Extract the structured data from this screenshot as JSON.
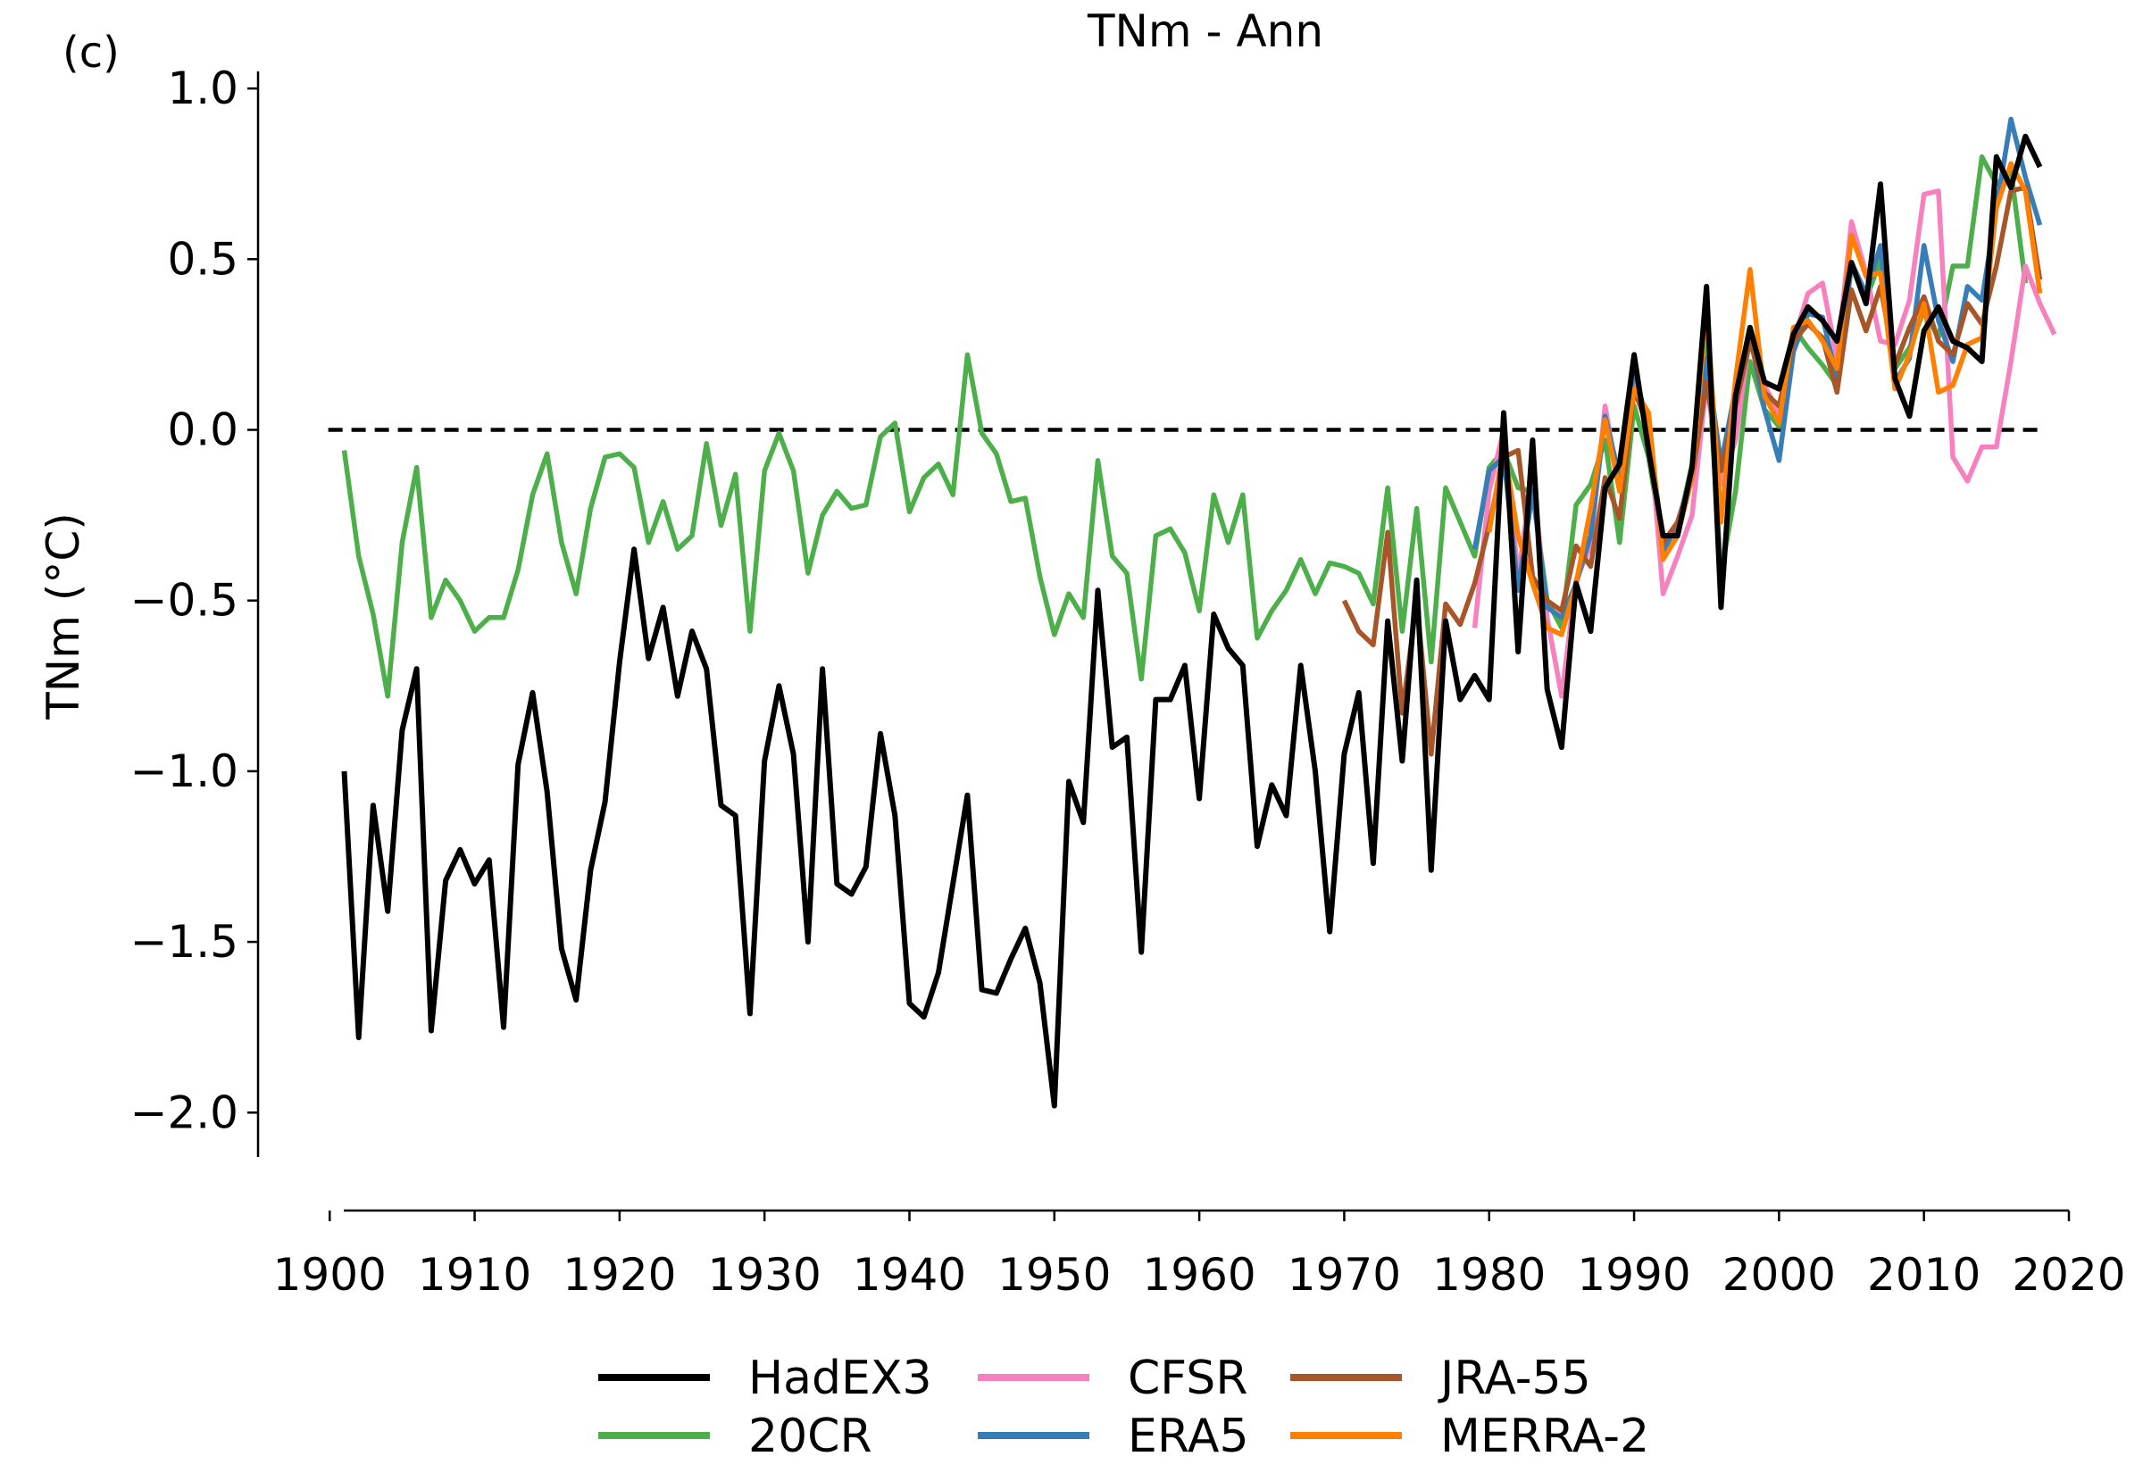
{
  "panel_label": "(c)",
  "chart_data": {
    "type": "line",
    "title": "TNm - Ann",
    "xlabel": "",
    "ylabel": "TNm (°C)",
    "xlim": [
      1899,
      2020
    ],
    "ylim": [
      -2.13,
      1.05
    ],
    "xticks": [
      1900,
      1910,
      1920,
      1930,
      1940,
      1950,
      1960,
      1970,
      1980,
      1990,
      2000,
      2010,
      2020
    ],
    "yticks": [
      {
        "value": 1.0,
        "label": "1.0"
      },
      {
        "value": 0.5,
        "label": "0.5"
      },
      {
        "value": 0.0,
        "label": "0.0"
      },
      {
        "value": -0.5,
        "label": "−0.5"
      },
      {
        "value": -1.0,
        "label": "−1.0"
      },
      {
        "value": -1.5,
        "label": "−1.5"
      },
      {
        "value": -2.0,
        "label": "−2.0"
      }
    ],
    "reference_line": {
      "y": 0.0,
      "style": "dashed",
      "color": "#000000"
    },
    "legend": {
      "position": "bottom-center",
      "columns": 3
    },
    "series": [
      {
        "name": "20CR",
        "color": "#4daf4a",
        "start_year": 1901,
        "values": [
          -0.06,
          -0.37,
          -0.54,
          -0.78,
          -0.33,
          -0.11,
          -0.55,
          -0.44,
          -0.5,
          -0.59,
          -0.55,
          -0.55,
          -0.41,
          -0.19,
          -0.07,
          -0.33,
          -0.48,
          -0.23,
          -0.08,
          -0.07,
          -0.11,
          -0.33,
          -0.21,
          -0.35,
          -0.31,
          -0.04,
          -0.28,
          -0.13,
          -0.59,
          -0.12,
          -0.01,
          -0.12,
          -0.42,
          -0.25,
          -0.18,
          -0.23,
          -0.22,
          -0.02,
          0.02,
          -0.24,
          -0.14,
          -0.1,
          -0.19,
          0.22,
          -0.01,
          -0.07,
          -0.21,
          -0.2,
          -0.43,
          -0.6,
          -0.48,
          -0.55,
          -0.09,
          -0.37,
          -0.42,
          -0.73,
          -0.31,
          -0.29,
          -0.36,
          -0.53,
          -0.19,
          -0.33,
          -0.19,
          -0.61,
          -0.53,
          -0.47,
          -0.38,
          -0.48,
          -0.39,
          -0.4,
          -0.42,
          -0.51,
          -0.17,
          -0.59,
          -0.23,
          -0.68,
          -0.17,
          -0.27,
          -0.37,
          -0.11,
          -0.06,
          -0.17,
          -0.18,
          -0.5,
          -0.58,
          -0.22,
          -0.16,
          -0.03,
          -0.33,
          0.07,
          -0.08,
          -0.34,
          -0.29,
          -0.1,
          0.26,
          -0.42,
          -0.18,
          0.2,
          0.06,
          0.01,
          0.3,
          0.24,
          0.19,
          0.13,
          0.48,
          0.38,
          0.5,
          0.18,
          0.24,
          0.35,
          0.27,
          0.48,
          0.48,
          0.8,
          0.72,
          0.76,
          0.43
        ]
      },
      {
        "name": "HadEX3",
        "color": "#000000",
        "start_year": 1901,
        "values": [
          -1.0,
          -1.78,
          -1.1,
          -1.41,
          -0.88,
          -0.7,
          -1.76,
          -1.32,
          -1.23,
          -1.33,
          -1.26,
          -1.75,
          -0.98,
          -0.77,
          -1.06,
          -1.52,
          -1.67,
          -1.29,
          -1.09,
          -0.68,
          -0.35,
          -0.67,
          -0.52,
          -0.78,
          -0.59,
          -0.7,
          -1.1,
          -1.13,
          -1.71,
          -0.97,
          -0.75,
          -0.95,
          -1.5,
          -0.7,
          -1.33,
          -1.36,
          -1.28,
          -0.89,
          -1.13,
          -1.68,
          -1.72,
          -1.59,
          -1.33,
          -1.07,
          -1.64,
          -1.65,
          -1.55,
          -1.46,
          -1.62,
          -1.98,
          -1.03,
          -1.15,
          -0.47,
          -0.93,
          -0.9,
          -1.53,
          -0.79,
          -0.79,
          -0.69,
          -1.08,
          -0.54,
          -0.64,
          -0.69,
          -1.22,
          -1.04,
          -1.13,
          -0.69,
          -1.0,
          -1.47,
          -0.95,
          -0.77,
          -1.27,
          -0.56,
          -0.97,
          -0.44,
          -1.29,
          -0.56,
          -0.79,
          -0.72,
          -0.79,
          0.05,
          -0.65,
          -0.03,
          -0.76,
          -0.93,
          -0.45,
          -0.59,
          -0.17,
          -0.1,
          0.22,
          -0.06,
          -0.31,
          -0.31,
          -0.11,
          0.42,
          -0.52,
          0.1,
          0.3,
          0.14,
          0.12,
          0.28,
          0.36,
          0.32,
          0.26,
          0.49,
          0.37,
          0.72,
          0.15,
          0.04,
          0.29,
          0.36,
          0.26,
          0.24,
          0.2,
          0.8,
          0.71,
          0.86,
          0.77
        ]
      },
      {
        "name": "CFSR",
        "color": "#f781bf",
        "start_year": 1979,
        "values": [
          -0.58,
          -0.18,
          0.0,
          -0.43,
          -0.12,
          -0.55,
          -0.78,
          -0.44,
          -0.34,
          0.07,
          -0.17,
          0.15,
          0.03,
          -0.48,
          -0.37,
          -0.25,
          0.14,
          -0.16,
          -0.03,
          0.28,
          0.13,
          0.05,
          0.26,
          0.4,
          0.43,
          0.21,
          0.61,
          0.46,
          0.26,
          0.25,
          0.38,
          0.69,
          0.7,
          -0.08,
          -0.15,
          -0.05,
          -0.05,
          0.2,
          0.48,
          0.37,
          0.28
        ]
      },
      {
        "name": "ERA5",
        "color": "#377eb8",
        "start_year": 1979,
        "values": [
          -0.35,
          -0.12,
          -0.08,
          -0.47,
          -0.18,
          -0.52,
          -0.55,
          -0.45,
          -0.31,
          0.04,
          -0.14,
          0.18,
          0.0,
          -0.36,
          -0.27,
          -0.13,
          0.21,
          -0.1,
          0.12,
          0.28,
          0.06,
          -0.09,
          0.23,
          0.34,
          0.33,
          0.15,
          0.49,
          0.4,
          0.54,
          0.14,
          0.21,
          0.54,
          0.32,
          0.2,
          0.42,
          0.38,
          0.65,
          0.91,
          0.74,
          0.6
        ]
      },
      {
        "name": "JRA-55",
        "color": "#a65628",
        "start_year": 1970,
        "values": [
          -0.5,
          -0.59,
          -0.63,
          -0.3,
          -0.83,
          -0.5,
          -0.95,
          -0.51,
          -0.57,
          -0.45,
          -0.28,
          -0.08,
          -0.06,
          -0.43,
          -0.5,
          -0.53,
          -0.34,
          -0.4,
          -0.14,
          -0.26,
          0.12,
          0.0,
          -0.33,
          -0.27,
          -0.14,
          0.14,
          -0.12,
          0.07,
          0.26,
          0.11,
          0.07,
          0.26,
          0.31,
          0.27,
          0.11,
          0.41,
          0.29,
          0.42,
          0.19,
          0.3,
          0.39,
          0.26,
          0.22,
          0.37,
          0.31,
          0.48,
          0.7,
          0.71,
          0.44
        ]
      },
      {
        "name": "MERRA-2",
        "color": "#ff7f00",
        "start_year": 1980,
        "values": [
          -0.3,
          -0.05,
          -0.31,
          -0.45,
          -0.58,
          -0.6,
          -0.45,
          -0.23,
          0.03,
          -0.18,
          0.12,
          0.05,
          -0.38,
          -0.31,
          -0.14,
          0.36,
          -0.27,
          0.15,
          0.47,
          0.1,
          0.02,
          0.3,
          0.32,
          0.26,
          0.18,
          0.57,
          0.45,
          0.46,
          0.12,
          0.22,
          0.37,
          0.11,
          0.13,
          0.25,
          0.27,
          0.65,
          0.78,
          0.7,
          0.4
        ]
      }
    ]
  }
}
